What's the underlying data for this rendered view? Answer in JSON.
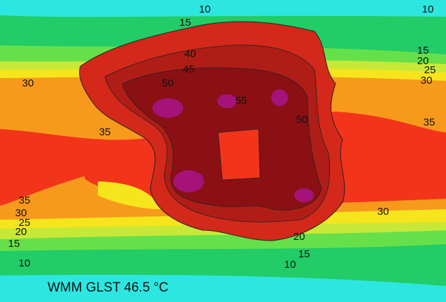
{
  "caption": "WMM GLST 46.5 °C",
  "contour_labels": [
    10,
    10,
    10,
    10,
    15,
    15,
    15,
    15,
    20,
    20,
    20,
    25,
    25,
    30,
    30,
    30,
    30,
    35,
    35,
    35,
    40,
    45,
    50,
    50,
    55
  ]
}
